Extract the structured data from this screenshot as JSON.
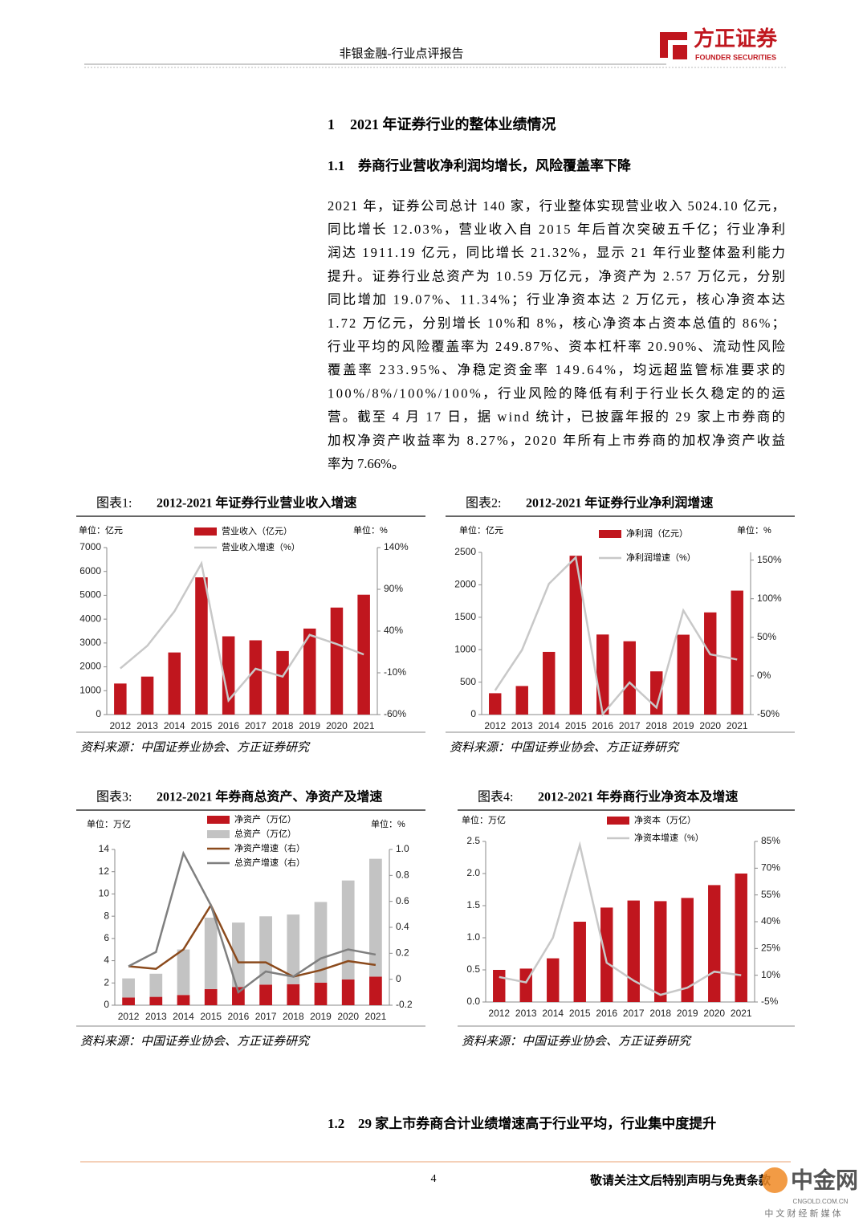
{
  "header": {
    "title": "非银金融-行业点评报告",
    "logo_cn": "方正证券",
    "logo_en": "FOUNDER SECURITIES"
  },
  "section": {
    "number": "1",
    "title": "2021 年证券行业的整体业绩情况"
  },
  "subsection1": {
    "number": "1.1",
    "title": "券商行业营收净利润均增长，风险覆盖率下降"
  },
  "paragraph": [
    "2021 年，证券公司总计 140 家，行业整体实现营业收入 5024.10 亿元，",
    "同比增长 12.03%，营业收入自 2015 年后首次突破五千亿；行业净利",
    "润达 1911.19 亿元，同比增长 21.32%，显示 21 年行业整体盈利能力",
    "提升。证券行业总资产为 10.59 万亿元，净资产为 2.57 万亿元，分别",
    "同比增加 19.07%、11.34%；行业净资本达 2 万亿元，核心净资本达",
    "1.72 万亿元，分别增长 10%和 8%，核心净资本占资本总值的 86%；",
    "行业平均的风险覆盖率为 249.87%、资本杠杆率 20.90%、流动性风险",
    "覆盖率 233.95%、净稳定资金率 149.64%，均远超监管标准要求的",
    "100%/8%/100%/100%，行业风险的降低有利于行业长久稳定的的运",
    "营。截至 4 月 17 日，据 wind 统计，已披露年报的 29 家上市券商的",
    "加权净资产收益率为 8.27%，2020 年所有上市券商的加权净资产收益",
    "率为 7.66%。"
  ],
  "chart_data": [
    {
      "type": "bar",
      "label": "图表1:",
      "title": "2012-2021 年证券行业营业收入增速",
      "unit_left": "单位：亿元",
      "unit_right": "单位：%",
      "source": "资料来源：中国证券业协会、方正证券研究",
      "categories": [
        "2012",
        "2013",
        "2014",
        "2015",
        "2016",
        "2017",
        "2018",
        "2019",
        "2020",
        "2021"
      ],
      "series": [
        {
          "name": "营业收入（亿元）",
          "color": "#c0161e",
          "values": [
            1301,
            1592,
            2603,
            5752,
            3280,
            3113,
            2663,
            3605,
            4485,
            5024
          ]
        },
        {
          "name": "营业收入增速（%）",
          "color": "#c8c8c8",
          "axis": "y2",
          "values": [
            -4.8,
            22.4,
            63.5,
            120.9,
            -43.0,
            -5.1,
            -14.5,
            35.4,
            24.4,
            12.0
          ]
        }
      ],
      "ylim": [
        0,
        7000
      ],
      "yticks": [
        0,
        1000,
        2000,
        3000,
        4000,
        5000,
        6000,
        7000
      ],
      "y2lim": [
        -60,
        140
      ],
      "y2ticks": [
        {
          "value": -60,
          "label": "-60%"
        },
        {
          "value": -10,
          "label": "-10%"
        },
        {
          "value": 40,
          "label": "40%"
        },
        {
          "value": 90,
          "label": "90%"
        },
        {
          "value": 140,
          "label": "140%"
        }
      ]
    },
    {
      "type": "bar",
      "label": "图表2:",
      "title": "2012-2021 年证券行业净利润增速",
      "unit_left": "单位：亿元",
      "unit_right": "单位：%",
      "source": "资料来源：中国证券业协会、方正证券研究",
      "categories": [
        "2012",
        "2013",
        "2014",
        "2015",
        "2016",
        "2017",
        "2018",
        "2019",
        "2020",
        "2021"
      ],
      "series": [
        {
          "name": "净利润（亿元）",
          "color": "#c0161e",
          "values": [
            329,
            440,
            966,
            2448,
            1234,
            1130,
            666,
            1231,
            1575,
            1911
          ]
        },
        {
          "name": "净利润增速（%）",
          "color": "#c8c8c8",
          "axis": "y2",
          "values": [
            -18.7,
            33.7,
            119.3,
            153.5,
            -49.6,
            -8.5,
            -41.0,
            84.8,
            28.0,
            21.3
          ]
        }
      ],
      "ylim": [
        0,
        2500
      ],
      "yticks": [
        0,
        500,
        1000,
        1500,
        2000,
        2500
      ],
      "y2lim": [
        -50,
        160
      ],
      "y2ticks": [
        {
          "value": -50,
          "label": "-50%"
        },
        {
          "value": 0,
          "label": "0%"
        },
        {
          "value": 50,
          "label": "50%"
        },
        {
          "value": 100,
          "label": "100%"
        },
        {
          "value": 150,
          "label": "150%"
        }
      ]
    },
    {
      "type": "bar",
      "label": "图表3:",
      "title": "2012-2021 年券商总资产、净资产及增速",
      "stacked": true,
      "unit_left": "单位：万亿",
      "unit_right": "单位：%",
      "source": "资料来源：中国证券业协会、方正证券研究",
      "categories": [
        "2012",
        "2013",
        "2014",
        "2015",
        "2016",
        "2017",
        "2018",
        "2019",
        "2020",
        "2021"
      ],
      "series": [
        {
          "name": "净资产（万亿）",
          "color": "#c0161e",
          "values": [
            0.69,
            0.75,
            0.92,
            1.45,
            1.64,
            1.85,
            1.89,
            2.02,
            2.31,
            2.57
          ]
        },
        {
          "name": "总资产（万亿）",
          "color": "#c3c3c3",
          "values": [
            1.72,
            2.08,
            4.09,
            6.42,
            5.79,
            6.14,
            6.26,
            7.26,
            8.9,
            10.59
          ]
        },
        {
          "name": "净资产增速（右）",
          "color": "#8b4a1c",
          "axis": "y2",
          "values": [
            0.1,
            0.08,
            0.23,
            0.57,
            0.13,
            0.13,
            0.02,
            0.07,
            0.14,
            0.11
          ]
        },
        {
          "name": "总资产增速（右）",
          "color": "#7f7f7f",
          "axis": "y2",
          "values": [
            0.1,
            0.21,
            0.97,
            0.57,
            -0.1,
            0.06,
            0.02,
            0.16,
            0.23,
            0.19
          ]
        }
      ],
      "ylim": [
        0,
        14
      ],
      "yticks": [
        0,
        2,
        4,
        6,
        8,
        10,
        12,
        14
      ],
      "y2lim": [
        -0.2,
        1
      ],
      "y2ticks": [
        -0.2,
        0,
        0.2,
        0.4,
        0.6,
        0.8,
        {
          "value": 1,
          "label": "1.0"
        }
      ]
    },
    {
      "type": "bar",
      "label": "图表4:",
      "title": "2012-2021 年券商行业净资本及增速",
      "unit_left": "单位：万亿",
      "source": "资料来源：中国证券业协会、方正证券研究",
      "categories": [
        "2012",
        "2013",
        "2014",
        "2015",
        "2016",
        "2017",
        "2018",
        "2019",
        "2020",
        "2021"
      ],
      "series": [
        {
          "name": "净资本（万亿）",
          "color": "#c0161e",
          "values": [
            0.5,
            0.52,
            0.68,
            1.25,
            1.47,
            1.58,
            1.57,
            1.62,
            1.82,
            2.0
          ]
        },
        {
          "name": "净资本增速（%）",
          "color": "#c8c8c8",
          "axis": "y2",
          "values": [
            9,
            6,
            31,
            83,
            17,
            7,
            -1,
            3,
            12,
            10
          ]
        }
      ],
      "ylim": [
        0,
        2.5
      ],
      "yticks": [
        {
          "value": 0,
          "label": "0.0"
        },
        0.5,
        {
          "value": 1,
          "label": "1.0"
        },
        1.5,
        {
          "value": 2,
          "label": "2.0"
        },
        2.5
      ],
      "y2lim": [
        -5,
        85
      ],
      "y2ticks": [
        {
          "value": -5,
          "label": "-5%"
        },
        {
          "value": 10,
          "label": "10%"
        },
        {
          "value": 25,
          "label": "25%"
        },
        {
          "value": 40,
          "label": "40%"
        },
        {
          "value": 55,
          "label": "55%"
        },
        {
          "value": 70,
          "label": "70%"
        },
        {
          "value": 85,
          "label": "85%"
        }
      ]
    }
  ],
  "subsection2": {
    "number": "1.2",
    "title": "29 家上市券商合计业绩增速高于行业平均，行业集中度提升"
  },
  "footer": {
    "page": "4",
    "disclaimer": "敬请关注文后特别声明与免责条款",
    "watermark": "中金网",
    "watermark_url": "CNGOLD.COM.CN",
    "watermark_sub": "中 文 财 经 新 媒 体"
  }
}
